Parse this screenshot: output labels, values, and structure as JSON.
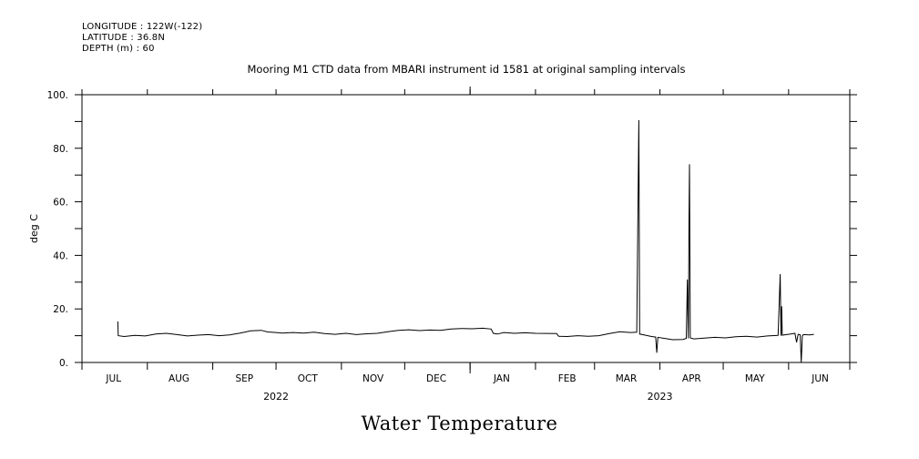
{
  "metadata": {
    "longitude": "LONGITUDE : 122W(-122)",
    "latitude": "LATITUDE : 36.8N",
    "depth": "DEPTH (m) : 60"
  },
  "chart_data": {
    "type": "line",
    "title": "Mooring M1 CTD data from MBARI instrument id 1581 at original sampling intervals",
    "big_title": "Water Temperature",
    "ylabel": "deg C",
    "xlabel": "",
    "ylim": [
      0,
      100
    ],
    "yticks": [
      0,
      20,
      40,
      60,
      80,
      100
    ],
    "ytick_labels": [
      "0.",
      "20.",
      "40.",
      "60.",
      "80.",
      "100."
    ],
    "xlim_days": [
      0,
      364
    ],
    "month_labels": [
      {
        "label": "JUL",
        "day": 15
      },
      {
        "label": "AUG",
        "day": 46
      },
      {
        "label": "SEP",
        "day": 77
      },
      {
        "label": "OCT",
        "day": 107
      },
      {
        "label": "NOV",
        "day": 138
      },
      {
        "label": "DEC",
        "day": 168
      },
      {
        "label": "JAN",
        "day": 199
      },
      {
        "label": "FEB",
        "day": 230
      },
      {
        "label": "MAR",
        "day": 258
      },
      {
        "label": "APR",
        "day": 289
      },
      {
        "label": "MAY",
        "day": 319
      },
      {
        "label": "JUN",
        "day": 350
      }
    ],
    "month_boundaries": [
      0,
      31,
      62,
      92,
      123,
      153,
      184,
      215,
      243,
      274,
      304,
      335,
      364
    ],
    "year_labels": [
      {
        "label": "2022",
        "day": 92
      },
      {
        "label": "2023",
        "day": 274
      }
    ],
    "year_boundary_day": 184,
    "series": [
      {
        "name": "Water Temperature",
        "color": "#000000",
        "points": [
          [
            17,
            15.3
          ],
          [
            17.2,
            10.0
          ],
          [
            20,
            9.7
          ],
          [
            25,
            10.1
          ],
          [
            30,
            9.9
          ],
          [
            35,
            10.6
          ],
          [
            40,
            10.9
          ],
          [
            45,
            10.4
          ],
          [
            50,
            9.9
          ],
          [
            55,
            10.2
          ],
          [
            60,
            10.4
          ],
          [
            65,
            10.0
          ],
          [
            70,
            10.3
          ],
          [
            75,
            11.0
          ],
          [
            80,
            11.8
          ],
          [
            85,
            12.0
          ],
          [
            88,
            11.4
          ],
          [
            92,
            11.2
          ],
          [
            95,
            11.0
          ],
          [
            100,
            11.2
          ],
          [
            105,
            11.0
          ],
          [
            110,
            11.3
          ],
          [
            115,
            10.8
          ],
          [
            120,
            10.5
          ],
          [
            125,
            10.9
          ],
          [
            130,
            10.4
          ],
          [
            135,
            10.7
          ],
          [
            140,
            10.9
          ],
          [
            145,
            11.5
          ],
          [
            150,
            12.0
          ],
          [
            155,
            12.2
          ],
          [
            160,
            11.9
          ],
          [
            165,
            12.1
          ],
          [
            170,
            12.0
          ],
          [
            175,
            12.5
          ],
          [
            180,
            12.7
          ],
          [
            185,
            12.6
          ],
          [
            190,
            12.8
          ],
          [
            194,
            12.5
          ],
          [
            195,
            10.9
          ],
          [
            197,
            10.6
          ],
          [
            200,
            11.2
          ],
          [
            205,
            10.9
          ],
          [
            210,
            11.1
          ],
          [
            215,
            10.9
          ],
          [
            225,
            10.8
          ],
          [
            226,
            9.8
          ],
          [
            230,
            9.7
          ],
          [
            235,
            10.0
          ],
          [
            240,
            9.8
          ],
          [
            245,
            10.0
          ],
          [
            250,
            10.8
          ],
          [
            255,
            11.5
          ],
          [
            260,
            11.2
          ],
          [
            263,
            11.3
          ],
          [
            264,
            90.5
          ],
          [
            264.4,
            10.6
          ],
          [
            267,
            10.2
          ],
          [
            270,
            9.7
          ],
          [
            272,
            9.5
          ],
          [
            272.5,
            3.6
          ],
          [
            273,
            9.4
          ],
          [
            276,
            9.0
          ],
          [
            280,
            8.5
          ],
          [
            285,
            8.6
          ],
          [
            286.5,
            9.0
          ],
          [
            287,
            31.0
          ],
          [
            287.5,
            9.0
          ],
          [
            287.8,
            54.0
          ],
          [
            288,
            74.0
          ],
          [
            288.4,
            9.2
          ],
          [
            290,
            8.8
          ],
          [
            295,
            9.1
          ],
          [
            300,
            9.4
          ],
          [
            305,
            9.2
          ],
          [
            310,
            9.6
          ],
          [
            315,
            9.8
          ],
          [
            320,
            9.5
          ],
          [
            325,
            9.9
          ],
          [
            330,
            10.1
          ],
          [
            331,
            33.0
          ],
          [
            331.4,
            10.0
          ],
          [
            331.7,
            21.0
          ],
          [
            332,
            10.2
          ],
          [
            336,
            10.6
          ],
          [
            338,
            10.9
          ],
          [
            338.8,
            7.5
          ],
          [
            339.5,
            10.5
          ],
          [
            340.5,
            10.3
          ],
          [
            341,
            0.0
          ],
          [
            341.5,
            9.8
          ],
          [
            342,
            10.4
          ],
          [
            345,
            10.3
          ],
          [
            347,
            10.5
          ]
        ]
      }
    ]
  }
}
